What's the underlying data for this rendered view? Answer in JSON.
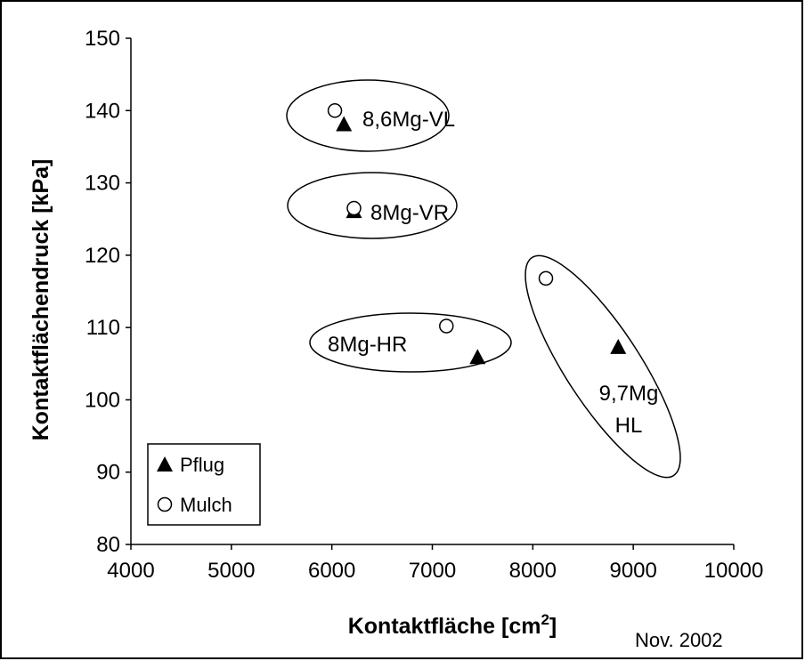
{
  "chart_data": {
    "type": "scatter",
    "xlabel": "Kontaktfläche [cm",
    "xlabel_sup": "2",
    "xlabel_end": "]",
    "ylabel": "Kontaktflächendruck [kPa]",
    "xlim": [
      4000,
      10000
    ],
    "ylim": [
      80,
      150
    ],
    "xticks": [
      4000,
      5000,
      6000,
      7000,
      8000,
      9000,
      10000
    ],
    "yticks": [
      80,
      90,
      100,
      110,
      120,
      130,
      140,
      150
    ],
    "grid": false,
    "legend_position": "bottom-left",
    "note": "Nov. 2002",
    "series": [
      {
        "name": "Pflug",
        "marker": "filled-triangle",
        "points": [
          {
            "x": 6120,
            "y": 138.0
          },
          {
            "x": 6220,
            "y": 126.0
          },
          {
            "x": 7450,
            "y": 105.8
          },
          {
            "x": 8850,
            "y": 107.2
          }
        ]
      },
      {
        "name": "Mulch",
        "marker": "open-circle",
        "points": [
          {
            "x": 6030,
            "y": 140.0
          },
          {
            "x": 6220,
            "y": 126.5
          },
          {
            "x": 7140,
            "y": 110.2
          },
          {
            "x": 8130,
            "y": 116.8
          }
        ]
      }
    ],
    "groups": [
      {
        "label": "8,6Mg-VL",
        "label_lines": [
          "8,6Mg-VL"
        ]
      },
      {
        "label": "8Mg-VR",
        "label_lines": [
          "8Mg-VR"
        ]
      },
      {
        "label": "8Mg-HR",
        "label_lines": [
          "8Mg-HR"
        ]
      },
      {
        "label": "9,7Mg HL",
        "label_lines": [
          "9,7Mg",
          "HL"
        ]
      }
    ]
  },
  "colors": {
    "axis": "#000000",
    "marker": "#000000",
    "background": "#ffffff"
  }
}
